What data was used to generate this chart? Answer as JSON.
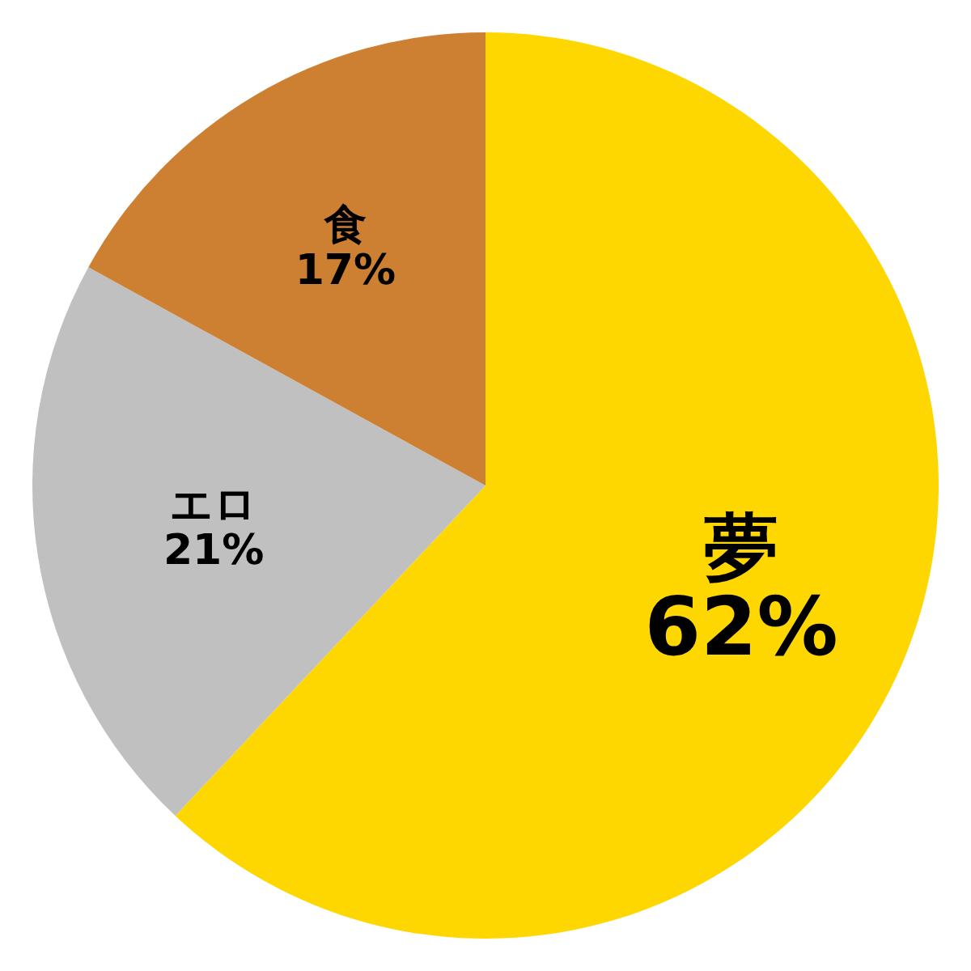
{
  "chart_data": {
    "type": "pie",
    "categories": [
      "夢",
      "エロ",
      "食"
    ],
    "values": [
      62,
      21,
      17
    ],
    "colors": [
      "#ffd700",
      "#c0c0c0",
      "#cd7f32"
    ],
    "value_labels": [
      "62%",
      "21%",
      "17%"
    ],
    "legend": false
  }
}
